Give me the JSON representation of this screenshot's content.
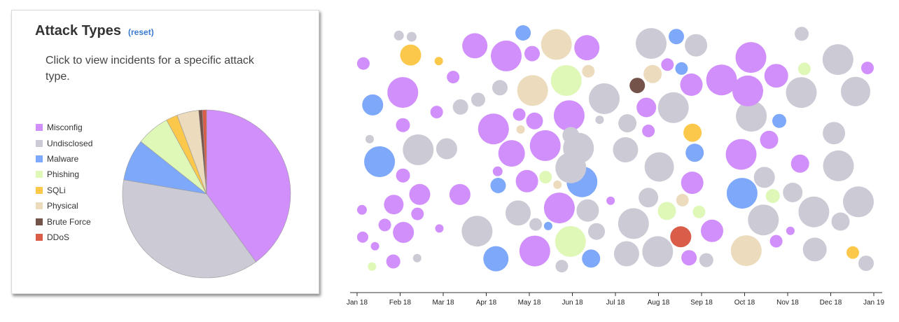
{
  "panel": {
    "title": "Attack Types",
    "reset_label": "(reset)",
    "description": "Click to view incidents for a specific attack type."
  },
  "legend": [
    {
      "label": "Misconfig",
      "color": "#d08ffa"
    },
    {
      "label": "Undisclosed",
      "color": "#cbcad5"
    },
    {
      "label": "Malware",
      "color": "#7ea8f9"
    },
    {
      "label": "Phishing",
      "color": "#dff8b8"
    },
    {
      "label": "SQLi",
      "color": "#fbc84c"
    },
    {
      "label": "Physical",
      "color": "#ecdcbd"
    },
    {
      "label": "Brute Force",
      "color": "#74534a"
    },
    {
      "label": "DDoS",
      "color": "#d95d48"
    }
  ],
  "chart_data": [
    {
      "type": "pie",
      "title": "Attack Types",
      "categories": [
        "Misconfig",
        "Undisclosed",
        "Malware",
        "Phishing",
        "SQLi",
        "Physical",
        "Brute Force",
        "DDoS"
      ],
      "values": [
        40.0,
        37.7,
        8.0,
        6.4,
        2.2,
        4.2,
        0.7,
        0.8
      ],
      "legend": "left"
    },
    {
      "type": "scatter",
      "x_ticks": [
        "Jan 18",
        "Feb 18",
        "Mar 18",
        "Apr 18",
        "May 18",
        "Jun 18",
        "Jul 18",
        "Aug 18",
        "Sep 18",
        "Oct 18",
        "Nov 18",
        "Dec 18",
        "Jan 19"
      ],
      "xlim": [
        "2018-01-01",
        "2019-01-01"
      ],
      "encoding": "bubble color = attack type, size = incident magnitude",
      "points": [
        [
          "2018-01-01",
          "Misconfig",
          9
        ],
        [
          "2018-01-04",
          "Undisclosed",
          6
        ],
        [
          "2018-01-02",
          "Misconfig",
          8
        ],
        [
          "2018-01-03",
          "Misconfig",
          7
        ],
        [
          "2018-01-08",
          "Misconfig",
          6
        ],
        [
          "2018-01-17",
          "Malware",
          22
        ],
        [
          "2018-01-06",
          "Malware",
          15
        ],
        [
          "2018-01-10",
          "Phishing",
          6
        ],
        [
          "2018-01-24",
          "Misconfig",
          9
        ],
        [
          "2018-02-04",
          "Undisclosed",
          7
        ],
        [
          "2018-01-27",
          "Misconfig",
          10
        ],
        [
          "2018-01-31",
          "Misconfig",
          14
        ],
        [
          "2018-02-09",
          "Misconfig",
          15
        ],
        [
          "2018-02-02",
          "Misconfig",
          10
        ],
        [
          "2018-02-08",
          "Misconfig",
          22
        ],
        [
          "2018-02-14",
          "Undisclosed",
          22
        ],
        [
          "2018-02-07",
          "Misconfig",
          10
        ],
        [
          "2018-02-05",
          "Undisclosed",
          7
        ],
        [
          "2018-02-12",
          "Misconfig",
          15
        ],
        [
          "2018-02-08",
          "Misconfig",
          9
        ],
        [
          "2018-02-07",
          "SQLi",
          15
        ],
        [
          "2018-02-17",
          "Undisclosed",
          6
        ],
        [
          "2018-02-26",
          "Misconfig",
          6
        ],
        [
          "2018-02-19",
          "Misconfig",
          9
        ],
        [
          "2018-02-25",
          "SQLi",
          6
        ],
        [
          "2018-03-04",
          "Undisclosed",
          15
        ],
        [
          "2018-03-15",
          "Misconfig",
          9
        ],
        [
          "2018-03-20",
          "Misconfig",
          15
        ],
        [
          "2018-03-18",
          "Undisclosed",
          11
        ],
        [
          "2018-03-26",
          "Undisclosed",
          10
        ],
        [
          "2018-04-01",
          "Misconfig",
          18
        ],
        [
          "2018-04-02",
          "Undisclosed",
          22
        ],
        [
          "2018-04-06",
          "Misconfig",
          22
        ],
        [
          "2018-04-03",
          "Malware",
          18
        ],
        [
          "2018-04-07",
          "Malware",
          11
        ],
        [
          "2018-04-14",
          "Misconfig",
          22
        ],
        [
          "2018-04-13",
          "Misconfig",
          7
        ],
        [
          "2018-04-11",
          "Undisclosed",
          11
        ],
        [
          "2018-04-22",
          "Malware",
          11
        ],
        [
          "2018-05-05",
          "Physical",
          22
        ],
        [
          "2018-05-02",
          "Misconfig",
          9
        ],
        [
          "2018-05-04",
          "Misconfig",
          11
        ],
        [
          "2018-04-25",
          "Misconfig",
          19
        ],
        [
          "2018-05-01",
          "Misconfig",
          16
        ],
        [
          "2018-04-30",
          "Misconfig",
          12
        ],
        [
          "2018-05-03",
          "Physical",
          6
        ],
        [
          "2018-05-02",
          "Undisclosed",
          18
        ],
        [
          "2018-05-13",
          "Misconfig",
          22
        ],
        [
          "2018-04-30",
          "Misconfig",
          22
        ],
        [
          "2018-05-03",
          "Undisclosed",
          9
        ],
        [
          "2018-05-15",
          "Phishing",
          9
        ],
        [
          "2018-05-22",
          "Phishing",
          22
        ],
        [
          "2018-05-29",
          "Misconfig",
          22
        ],
        [
          "2018-06-01",
          "Undisclosed",
          12
        ],
        [
          "2018-06-02",
          "Misconfig",
          22
        ],
        [
          "2018-05-17",
          "Malware",
          6
        ],
        [
          "2018-05-25",
          "Undisclosed",
          9
        ],
        [
          "2018-06-07",
          "Phishing",
          22
        ],
        [
          "2018-06-10",
          "Malware",
          13
        ],
        [
          "2018-06-05",
          "Malware",
          22
        ],
        [
          "2018-05-21",
          "Physical",
          22
        ],
        [
          "2018-06-04",
          "Undisclosed",
          22
        ],
        [
          "2018-06-01",
          "Undisclosed",
          22
        ],
        [
          "2018-06-11",
          "Undisclosed",
          16
        ],
        [
          "2018-05-23",
          "Physical",
          6
        ],
        [
          "2018-06-07",
          "Physical",
          9
        ],
        [
          "2018-06-08",
          "Misconfig",
          18
        ],
        [
          "2018-06-16",
          "Undisclosed",
          6
        ],
        [
          "2018-06-13",
          "Undisclosed",
          12
        ],
        [
          "2018-07-01",
          "Undisclosed",
          22
        ],
        [
          "2018-07-03",
          "Undisclosed",
          18
        ],
        [
          "2018-07-02",
          "Misconfig",
          6
        ],
        [
          "2018-07-05",
          "Undisclosed",
          18
        ],
        [
          "2018-07-17",
          "Undisclosed",
          13
        ],
        [
          "2018-07-20",
          "Undisclosed",
          22
        ],
        [
          "2018-07-19",
          "Misconfig",
          14
        ],
        [
          "2018-07-24",
          "Misconfig",
          9
        ],
        [
          "2018-07-24",
          "Brute Force",
          11
        ],
        [
          "2018-07-31",
          "Undisclosed",
          22
        ],
        [
          "2018-07-28",
          "Undisclosed",
          14
        ],
        [
          "2018-08-01",
          "Undisclosed",
          22
        ],
        [
          "2018-07-29",
          "Undisclosed",
          21
        ],
        [
          "2018-07-31",
          "Physical",
          13
        ],
        [
          "2018-08-14",
          "Phishing",
          13
        ],
        [
          "2018-08-13",
          "Misconfig",
          9
        ],
        [
          "2018-08-19",
          "Malware",
          9
        ],
        [
          "2018-08-22",
          "Misconfig",
          11
        ],
        [
          "2018-08-22",
          "DDoS",
          15
        ],
        [
          "2018-08-14",
          "Malware",
          11
        ],
        [
          "2018-08-16",
          "Physical",
          9
        ],
        [
          "2018-08-17",
          "Undisclosed",
          22
        ],
        [
          "2018-08-25",
          "Phishing",
          9
        ],
        [
          "2018-08-30",
          "Malware",
          13
        ],
        [
          "2018-08-31",
          "SQLi",
          13
        ],
        [
          "2018-08-23",
          "Misconfig",
          16
        ],
        [
          "2018-08-25",
          "Misconfig",
          16
        ],
        [
          "2018-08-30",
          "Undisclosed",
          10
        ],
        [
          "2018-09-04",
          "Undisclosed",
          16
        ],
        [
          "2018-09-14",
          "Misconfig",
          16
        ],
        [
          "2018-09-22",
          "Misconfig",
          22
        ],
        [
          "2018-09-24",
          "Misconfig",
          22
        ],
        [
          "2018-09-26",
          "Malware",
          22
        ],
        [
          "2018-09-28",
          "Physical",
          22
        ],
        [
          "2018-09-30",
          "Misconfig",
          22
        ],
        [
          "2018-10-02",
          "Undisclosed",
          22
        ],
        [
          "2018-10-04",
          "Misconfig",
          22
        ],
        [
          "2018-10-10",
          "Undisclosed",
          15
        ],
        [
          "2018-10-14",
          "Undisclosed",
          22
        ],
        [
          "2018-10-17",
          "Misconfig",
          17
        ],
        [
          "2018-10-18",
          "Misconfig",
          13
        ],
        [
          "2018-10-18",
          "Misconfig",
          9
        ],
        [
          "2018-10-21",
          "Malware",
          10
        ],
        [
          "2018-10-22",
          "Phishing",
          10
        ],
        [
          "2018-11-01",
          "Undisclosed",
          14
        ],
        [
          "2018-11-05",
          "Undisclosed",
          10
        ],
        [
          "2018-11-07",
          "Phishing",
          9
        ],
        [
          "2018-11-07",
          "Misconfig",
          6
        ],
        [
          "2018-11-12",
          "Undisclosed",
          22
        ],
        [
          "2018-11-13",
          "Undisclosed",
          22
        ],
        [
          "2018-11-17",
          "Misconfig",
          13
        ],
        [
          "2018-11-25",
          "Undisclosed",
          17
        ],
        [
          "2018-12-05",
          "Undisclosed",
          22
        ],
        [
          "2018-12-08",
          "Undisclosed",
          22
        ],
        [
          "2018-12-11",
          "Undisclosed",
          16
        ],
        [
          "2018-12-13",
          "Undisclosed",
          13
        ],
        [
          "2018-12-16",
          "SQLi",
          9
        ],
        [
          "2018-12-19",
          "Undisclosed",
          21
        ],
        [
          "2018-12-24",
          "Misconfig",
          9
        ],
        [
          "2018-12-27",
          "Undisclosed",
          11
        ],
        [
          "2018-12-30",
          "Undisclosed",
          22
        ]
      ]
    }
  ]
}
